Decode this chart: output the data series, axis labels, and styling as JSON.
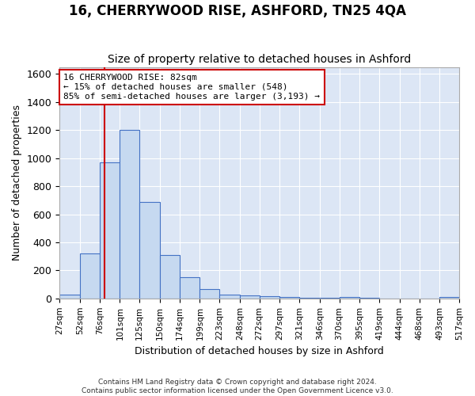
{
  "title": "16, CHERRYWOOD RISE, ASHFORD, TN25 4QA",
  "subtitle": "Size of property relative to detached houses in Ashford",
  "xlabel": "Distribution of detached houses by size in Ashford",
  "ylabel": "Number of detached properties",
  "footer_line1": "Contains HM Land Registry data © Crown copyright and database right 2024.",
  "footer_line2": "Contains public sector information licensed under the Open Government Licence v3.0.",
  "bar_edges": [
    27,
    52,
    76,
    101,
    125,
    150,
    174,
    199,
    223,
    248,
    272,
    297,
    321,
    346,
    370,
    395,
    419,
    444,
    468,
    493,
    517
  ],
  "bar_heights": [
    25,
    320,
    970,
    1200,
    690,
    310,
    150,
    65,
    25,
    20,
    15,
    10,
    5,
    3,
    8,
    2,
    1,
    1,
    1,
    8
  ],
  "bar_color": "#c6d9f0",
  "bar_edge_color": "#4472c4",
  "property_size": 82,
  "red_line_color": "#cc0000",
  "annotation_text": "16 CHERRYWOOD RISE: 82sqm\n← 15% of detached houses are smaller (548)\n85% of semi-detached houses are larger (3,193) →",
  "annotation_box_color": "#ffffff",
  "annotation_box_edge_color": "#cc0000",
  "ylim": [
    0,
    1650
  ],
  "yticks": [
    0,
    200,
    400,
    600,
    800,
    1000,
    1200,
    1400,
    1600
  ],
  "background_color": "#dce6f5",
  "title_fontsize": 12,
  "subtitle_fontsize": 10,
  "tick_label_fontsize": 7.5
}
